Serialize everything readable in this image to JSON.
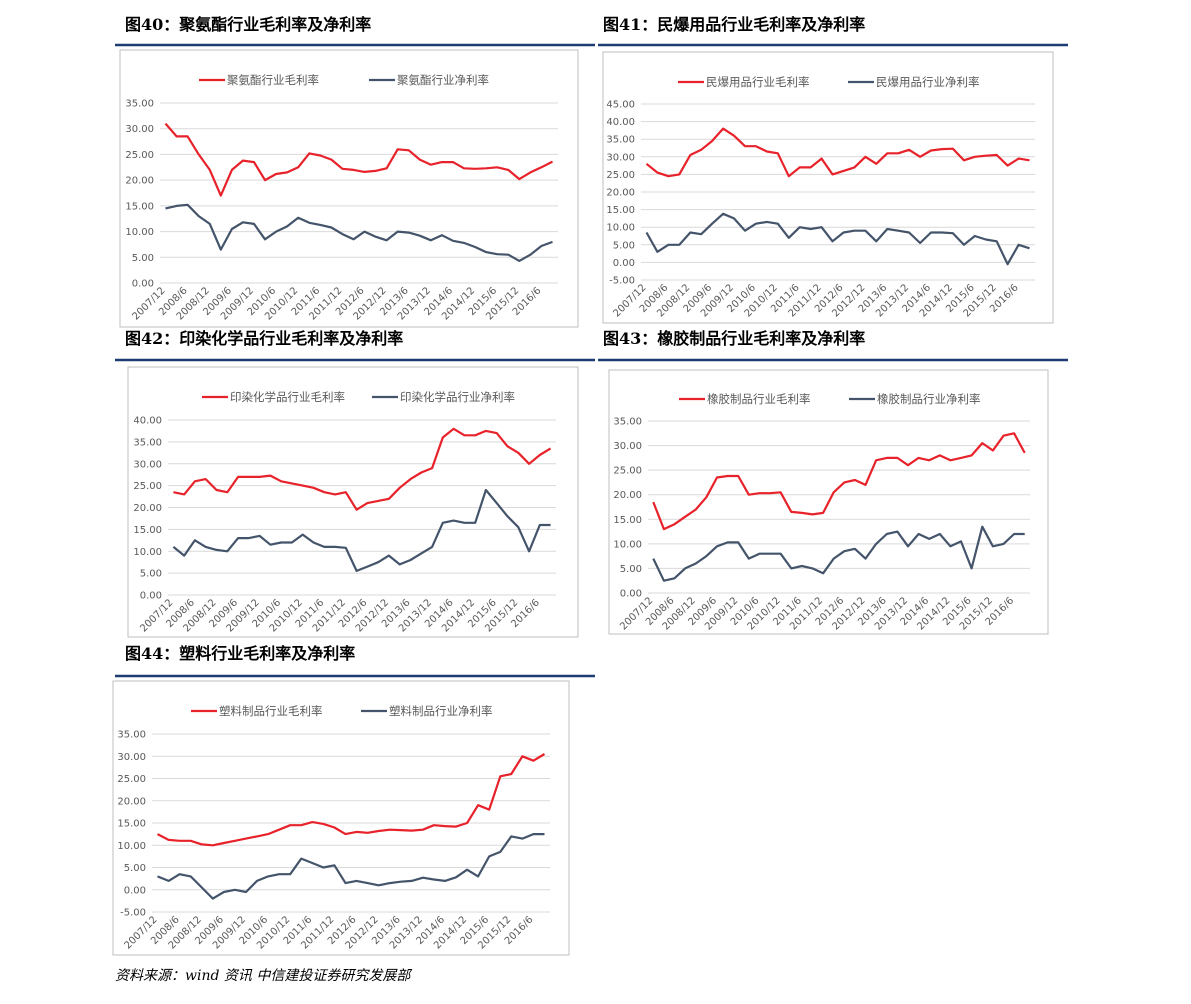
{
  "chart_data": [
    {
      "type": "line",
      "title": "图40：聚氨酯行业毛利率及净利率",
      "categories": [
        "2007/12",
        null,
        "2008/6",
        null,
        "2008/12",
        null,
        "2009/6",
        null,
        "2009/12",
        null,
        "2010/6",
        null,
        "2010/12",
        null,
        "2011/6",
        null,
        "2011/12",
        null,
        "2012/6",
        null,
        "2012/12",
        null,
        "2013/6",
        null,
        "2013/12",
        null,
        "2014/6",
        null,
        "2014/12",
        null,
        "2015/6",
        null,
        "2015/12",
        null,
        "2016/6",
        null
      ],
      "series": [
        {
          "name": "聚氨酯行业毛利率",
          "color": "#e8222a",
          "values": [
            31,
            28.5,
            28.5,
            25,
            22,
            17,
            22,
            23.8,
            23.5,
            20,
            21.2,
            21.5,
            22.5,
            25.2,
            24.8,
            24,
            22.2,
            22,
            21.6,
            21.8,
            22.3,
            26,
            25.8,
            24,
            23,
            23.5,
            23.5,
            22.3,
            22.2,
            22.3,
            22.5,
            22,
            20.2,
            21.5,
            22.5,
            23.6
          ]
        },
        {
          "name": "聚氨酯行业净利率",
          "color": "#44546a",
          "values": [
            14.5,
            15,
            15.2,
            13,
            11.5,
            6.5,
            10.5,
            11.8,
            11.5,
            8.5,
            10,
            11,
            12.7,
            11.7,
            11.3,
            10.8,
            9.5,
            8.5,
            10,
            9,
            8.3,
            10,
            9.8,
            9.2,
            8.3,
            9.3,
            8.2,
            7.8,
            7,
            6,
            5.6,
            5.5,
            4.3,
            5.5,
            7.2,
            8
          ]
        }
      ],
      "ylim": [
        0,
        35
      ],
      "yticks": [
        {
          "value": 0,
          "label": "0.00"
        },
        {
          "value": 5,
          "label": "5.00"
        },
        {
          "value": 10,
          "label": "10.00"
        },
        {
          "value": 15,
          "label": "15.00"
        },
        {
          "value": 20,
          "label": "20.00"
        },
        {
          "value": 25,
          "label": "25.00"
        },
        {
          "value": 30,
          "label": "30.00"
        },
        {
          "value": 35,
          "label": "35.00"
        }
      ],
      "grid": true
    },
    {
      "type": "line",
      "title": "图41：民爆用品行业毛利率及净利率",
      "categories": [
        "2007/12",
        null,
        "2008/6",
        null,
        "2008/12",
        null,
        "2009/6",
        null,
        "2009/12",
        null,
        "2010/6",
        null,
        "2010/12",
        null,
        "2011/6",
        null,
        "2011/12",
        null,
        "2012/6",
        null,
        "2012/12",
        null,
        "2013/6",
        null,
        "2013/12",
        null,
        "2014/6",
        null,
        "2014/12",
        null,
        "2015/6",
        null,
        "2015/12",
        null,
        "2016/6",
        null
      ],
      "series": [
        {
          "name": "民爆用品行业毛利率",
          "color": "#e8222a",
          "values": [
            28,
            25.5,
            24.5,
            25,
            30.5,
            32,
            34.5,
            38,
            36,
            33,
            33,
            31.5,
            31,
            24.5,
            27,
            27,
            29.5,
            25,
            26,
            27,
            30,
            28,
            31,
            31,
            32,
            30,
            31.8,
            32.2,
            32.3,
            29,
            30,
            30.3,
            30.5,
            27.5,
            29.5,
            29
          ]
        },
        {
          "name": "民爆用品行业净利率",
          "color": "#44546a",
          "values": [
            8.5,
            3,
            5,
            5,
            8.5,
            8,
            11,
            13.8,
            12.5,
            9,
            11,
            11.5,
            11,
            7,
            10,
            9.5,
            10,
            6,
            8.5,
            9,
            9,
            6,
            9.5,
            9,
            8.5,
            5.5,
            8.5,
            8.5,
            8.3,
            5,
            7.5,
            6.5,
            6,
            -0.5,
            5,
            4
          ]
        }
      ],
      "ylim": [
        -5,
        45
      ],
      "yticks": [
        {
          "value": -5,
          "label": "-5.00"
        },
        {
          "value": 0,
          "label": "0.00"
        },
        {
          "value": 5,
          "label": "5.00"
        },
        {
          "value": 10,
          "label": "10.00"
        },
        {
          "value": 15,
          "label": "15.00"
        },
        {
          "value": 20,
          "label": "20.00"
        },
        {
          "value": 25,
          "label": "25.00"
        },
        {
          "value": 30,
          "label": "30.00"
        },
        {
          "value": 35,
          "label": "35.00"
        },
        {
          "value": 40,
          "label": "40.00"
        },
        {
          "value": 45,
          "label": "45.00"
        }
      ],
      "grid": true
    },
    {
      "type": "line",
      "title": "图42：印染化学品行业毛利率及净利率",
      "categories": [
        "2007/12",
        null,
        "2008/6",
        null,
        "2008/12",
        null,
        "2009/6",
        null,
        "2009/12",
        null,
        "2010/6",
        null,
        "2010/12",
        null,
        "2011/6",
        null,
        "2011/12",
        null,
        "2012/6",
        null,
        "2012/12",
        null,
        "2013/6",
        null,
        "2013/12",
        null,
        "2014/6",
        null,
        "2014/12",
        null,
        "2015/6",
        null,
        "2015/12",
        null,
        "2016/6",
        null
      ],
      "series": [
        {
          "name": "印染化学品行业毛利率",
          "color": "#e8222a",
          "values": [
            23.5,
            23,
            26,
            26.5,
            24,
            23.5,
            27,
            27,
            27,
            27.3,
            26,
            25.5,
            25,
            24.5,
            23.5,
            23,
            23.5,
            19.5,
            21,
            21.5,
            22,
            24.5,
            26.5,
            28,
            29,
            36,
            38,
            36.5,
            36.5,
            37.5,
            37,
            34,
            32.5,
            30,
            32,
            33.5
          ]
        },
        {
          "name": "印染化学品行业净利率",
          "color": "#44546a",
          "values": [
            11,
            9,
            12.5,
            11,
            10.3,
            10,
            13,
            13,
            13.5,
            11.5,
            12,
            12,
            13.8,
            12,
            11,
            11,
            10.8,
            5.5,
            6.5,
            7.5,
            9,
            7,
            8,
            9.5,
            11,
            16.5,
            17,
            16.5,
            16.5,
            24,
            21,
            18,
            15.5,
            10,
            16,
            16
          ]
        }
      ],
      "ylim": [
        0,
        40
      ],
      "yticks": [
        {
          "value": 0,
          "label": "0.00"
        },
        {
          "value": 5,
          "label": "5.00"
        },
        {
          "value": 10,
          "label": "10.00"
        },
        {
          "value": 15,
          "label": "15.00"
        },
        {
          "value": 20,
          "label": "20.00"
        },
        {
          "value": 25,
          "label": "25.00"
        },
        {
          "value": 30,
          "label": "30.00"
        },
        {
          "value": 35,
          "label": "35.00"
        },
        {
          "value": 40,
          "label": "40.00"
        }
      ],
      "grid": true
    },
    {
      "type": "line",
      "title": "图43：橡胶制品行业毛利率及净利率",
      "categories": [
        "2007/12",
        null,
        "2008/6",
        null,
        "2008/12",
        null,
        "2009/6",
        null,
        "2009/12",
        null,
        "2010/6",
        null,
        "2010/12",
        null,
        "2011/6",
        null,
        "2011/12",
        null,
        "2012/6",
        null,
        "2012/12",
        null,
        "2013/6",
        null,
        "2013/12",
        null,
        "2014/6",
        null,
        "2014/12",
        null,
        "2015/6",
        null,
        "2015/12",
        null,
        "2016/6",
        null
      ],
      "series": [
        {
          "name": "橡胶制品行业毛利率",
          "color": "#e8222a",
          "values": [
            18.5,
            13,
            14,
            15.5,
            17,
            19.5,
            23.5,
            23.8,
            23.8,
            20,
            20.3,
            20.3,
            20.5,
            16.5,
            16.3,
            16,
            16.3,
            20.5,
            22.5,
            23,
            22,
            27,
            27.5,
            27.5,
            26,
            27.5,
            27,
            28,
            27,
            27.5,
            28,
            30.5,
            29,
            32,
            32.5,
            28.5
          ]
        },
        {
          "name": "橡胶制品行业净利率",
          "color": "#44546a",
          "values": [
            7,
            2.5,
            3,
            5,
            6,
            7.5,
            9.5,
            10.3,
            10.3,
            7,
            8,
            8,
            8,
            5,
            5.5,
            5,
            4,
            7,
            8.5,
            9,
            7,
            10,
            12,
            12.5,
            9.5,
            12,
            11,
            12,
            9.5,
            10.5,
            5,
            13.5,
            9.5,
            10,
            12,
            12
          ]
        }
      ],
      "ylim": [
        0,
        35
      ],
      "yticks": [
        {
          "value": 0,
          "label": "0.00"
        },
        {
          "value": 5,
          "label": "5.00"
        },
        {
          "value": 10,
          "label": "10.00"
        },
        {
          "value": 15,
          "label": "15.00"
        },
        {
          "value": 20,
          "label": "20.00"
        },
        {
          "value": 25,
          "label": "25.00"
        },
        {
          "value": 30,
          "label": "30.00"
        },
        {
          "value": 35,
          "label": "35.00"
        }
      ],
      "grid": true
    },
    {
      "type": "line",
      "title": "图44：塑料行业毛利率及净利率",
      "categories": [
        "2007/12",
        null,
        "2008/6",
        null,
        "2008/12",
        null,
        "2009/6",
        null,
        "2009/12",
        null,
        "2010/6",
        null,
        "2010/12",
        null,
        "2011/6",
        null,
        "2011/12",
        null,
        "2012/6",
        null,
        "2012/12",
        null,
        "2013/6",
        null,
        "2013/12",
        null,
        "2014/6",
        null,
        "2014/12",
        null,
        "2015/6",
        null,
        "2015/12",
        null,
        "2016/6",
        null
      ],
      "series": [
        {
          "name": "塑料制品行业毛利率",
          "color": "#e8222a",
          "values": [
            12.5,
            11.2,
            11,
            11,
            10.2,
            10,
            10.5,
            11,
            11.5,
            12,
            12.5,
            13.5,
            14.5,
            14.5,
            15.2,
            14.8,
            14,
            12.5,
            13,
            12.8,
            13.2,
            13.5,
            13.4,
            13.3,
            13.5,
            14.5,
            14.3,
            14.2,
            15,
            19,
            18,
            25.5,
            26,
            30,
            29,
            30.5
          ]
        },
        {
          "name": "塑料制品行业净利率",
          "color": "#44546a",
          "values": [
            3,
            2,
            3.5,
            3,
            0.5,
            -2,
            -0.5,
            0,
            -0.5,
            2,
            3,
            3.5,
            3.5,
            7,
            6,
            5,
            5.5,
            1.5,
            2,
            1.5,
            1,
            1.5,
            1.8,
            2,
            2.7,
            2.3,
            2,
            2.8,
            4.5,
            3,
            7.5,
            8.5,
            12,
            11.5,
            12.5,
            12.5
          ]
        }
      ],
      "ylim": [
        -5,
        35
      ],
      "yticks": [
        {
          "value": -5,
          "label": "-5.00"
        },
        {
          "value": 0,
          "label": "0.00"
        },
        {
          "value": 5,
          "label": "5.00"
        },
        {
          "value": 10,
          "label": "10.00"
        },
        {
          "value": 15,
          "label": "15.00"
        },
        {
          "value": 20,
          "label": "20.00"
        },
        {
          "value": 25,
          "label": "25.00"
        },
        {
          "value": 30,
          "label": "30.00"
        },
        {
          "value": 35,
          "label": "35.00"
        }
      ],
      "grid": true
    }
  ],
  "source": "资料来源：wind 资讯 中信建投证券研究发展部"
}
